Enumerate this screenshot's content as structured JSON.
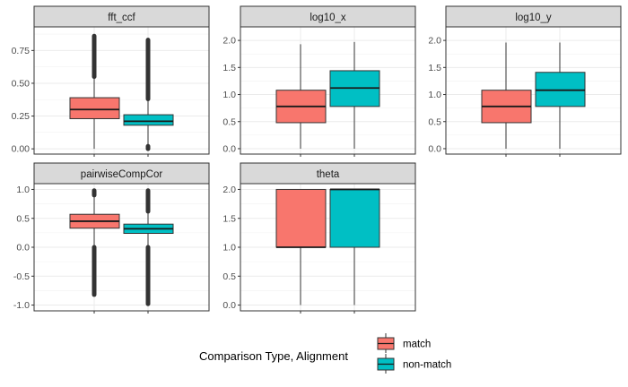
{
  "chart_data": {
    "type": "box",
    "facet_style": "ggplot2 facet_wrap, 3 columns, free y scales",
    "grid": true,
    "colors": {
      "match": "#F8766D",
      "non-match": "#00BFC4",
      "outline": "#333333",
      "strip_bg": "#D9D9D9",
      "grid": "#EBEBEB",
      "border": "#333333"
    },
    "legend": {
      "title": "Comparison Type, Alignment",
      "position": "bottom",
      "entries": [
        {
          "label": "match",
          "color": "#F8766D"
        },
        {
          "label": "non-match",
          "color": "#00BFC4"
        }
      ]
    },
    "panels": [
      {
        "name": "fft_ccf",
        "ylim": [
          -0.04,
          0.93
        ],
        "yticks": [
          0.0,
          0.25,
          0.5,
          0.75
        ],
        "ytick_labels": [
          "0.00",
          "0.25",
          "0.50",
          "0.75"
        ],
        "boxes": [
          {
            "group": "match",
            "whisker_low": 0.0,
            "q1": 0.23,
            "median": 0.3,
            "q3": 0.39,
            "whisker_high": 0.55,
            "outliers_range": [
              0.55,
              0.86
            ]
          },
          {
            "group": "non-match",
            "whisker_low": 0.02,
            "q1": 0.18,
            "median": 0.21,
            "q3": 0.26,
            "whisker_high": 0.38,
            "outliers_range": [
              0.38,
              0.83
            ],
            "outliers_low_range": [
              0.0,
              0.02
            ]
          }
        ]
      },
      {
        "name": "log10_x",
        "ylim": [
          -0.1,
          2.25
        ],
        "yticks": [
          0.0,
          0.5,
          1.0,
          1.5,
          2.0
        ],
        "ytick_labels": [
          "0.0",
          "0.5",
          "1.0",
          "1.5",
          "2.0"
        ],
        "boxes": [
          {
            "group": "match",
            "whisker_low": 0.0,
            "q1": 0.48,
            "median": 0.78,
            "q3": 1.08,
            "whisker_high": 1.93
          },
          {
            "group": "non-match",
            "whisker_low": 0.0,
            "q1": 0.78,
            "median": 1.12,
            "q3": 1.44,
            "whisker_high": 1.97
          }
        ]
      },
      {
        "name": "log10_y",
        "ylim": [
          -0.1,
          2.25
        ],
        "yticks": [
          0.0,
          0.5,
          1.0,
          1.5,
          2.0
        ],
        "ytick_labels": [
          "0.0",
          "0.5",
          "1.0",
          "1.5",
          "2.0"
        ],
        "boxes": [
          {
            "group": "match",
            "whisker_low": 0.0,
            "q1": 0.48,
            "median": 0.78,
            "q3": 1.08,
            "whisker_high": 1.96
          },
          {
            "group": "non-match",
            "whisker_low": 0.0,
            "q1": 0.78,
            "median": 1.08,
            "q3": 1.41,
            "whisker_high": 1.96
          }
        ]
      },
      {
        "name": "pairwiseCompCor",
        "ylim": [
          -1.1,
          1.1
        ],
        "yticks": [
          -1.0,
          -0.5,
          0.0,
          0.5,
          1.0
        ],
        "ytick_labels": [
          "-1.0",
          "-0.5",
          "0.0",
          "0.5",
          "1.0"
        ],
        "boxes": [
          {
            "group": "match",
            "whisker_low": 0.0,
            "q1": 0.33,
            "median": 0.45,
            "q3": 0.57,
            "whisker_high": 0.9,
            "outliers_range": [
              0.9,
              0.98
            ],
            "outliers_low_range": [
              -0.82,
              0.0
            ]
          },
          {
            "group": "non-match",
            "whisker_low": 0.0,
            "q1": 0.24,
            "median": 0.32,
            "q3": 0.4,
            "whisker_high": 0.62,
            "outliers_range": [
              0.62,
              0.98
            ],
            "outliers_low_range": [
              -0.98,
              0.0
            ]
          }
        ]
      },
      {
        "name": "theta",
        "ylim": [
          -0.1,
          2.1
        ],
        "yticks": [
          0.0,
          0.5,
          1.0,
          1.5,
          2.0
        ],
        "ytick_labels": [
          "0.0",
          "0.5",
          "1.0",
          "1.5",
          "2.0"
        ],
        "boxes": [
          {
            "group": "match",
            "whisker_low": 0.0,
            "q1": 1.0,
            "median": 1.0,
            "q3": 2.0,
            "whisker_high": 2.0
          },
          {
            "group": "non-match",
            "whisker_low": 0.0,
            "q1": 1.0,
            "median": 2.0,
            "q3": 2.0,
            "whisker_high": 2.0
          }
        ]
      }
    ]
  }
}
